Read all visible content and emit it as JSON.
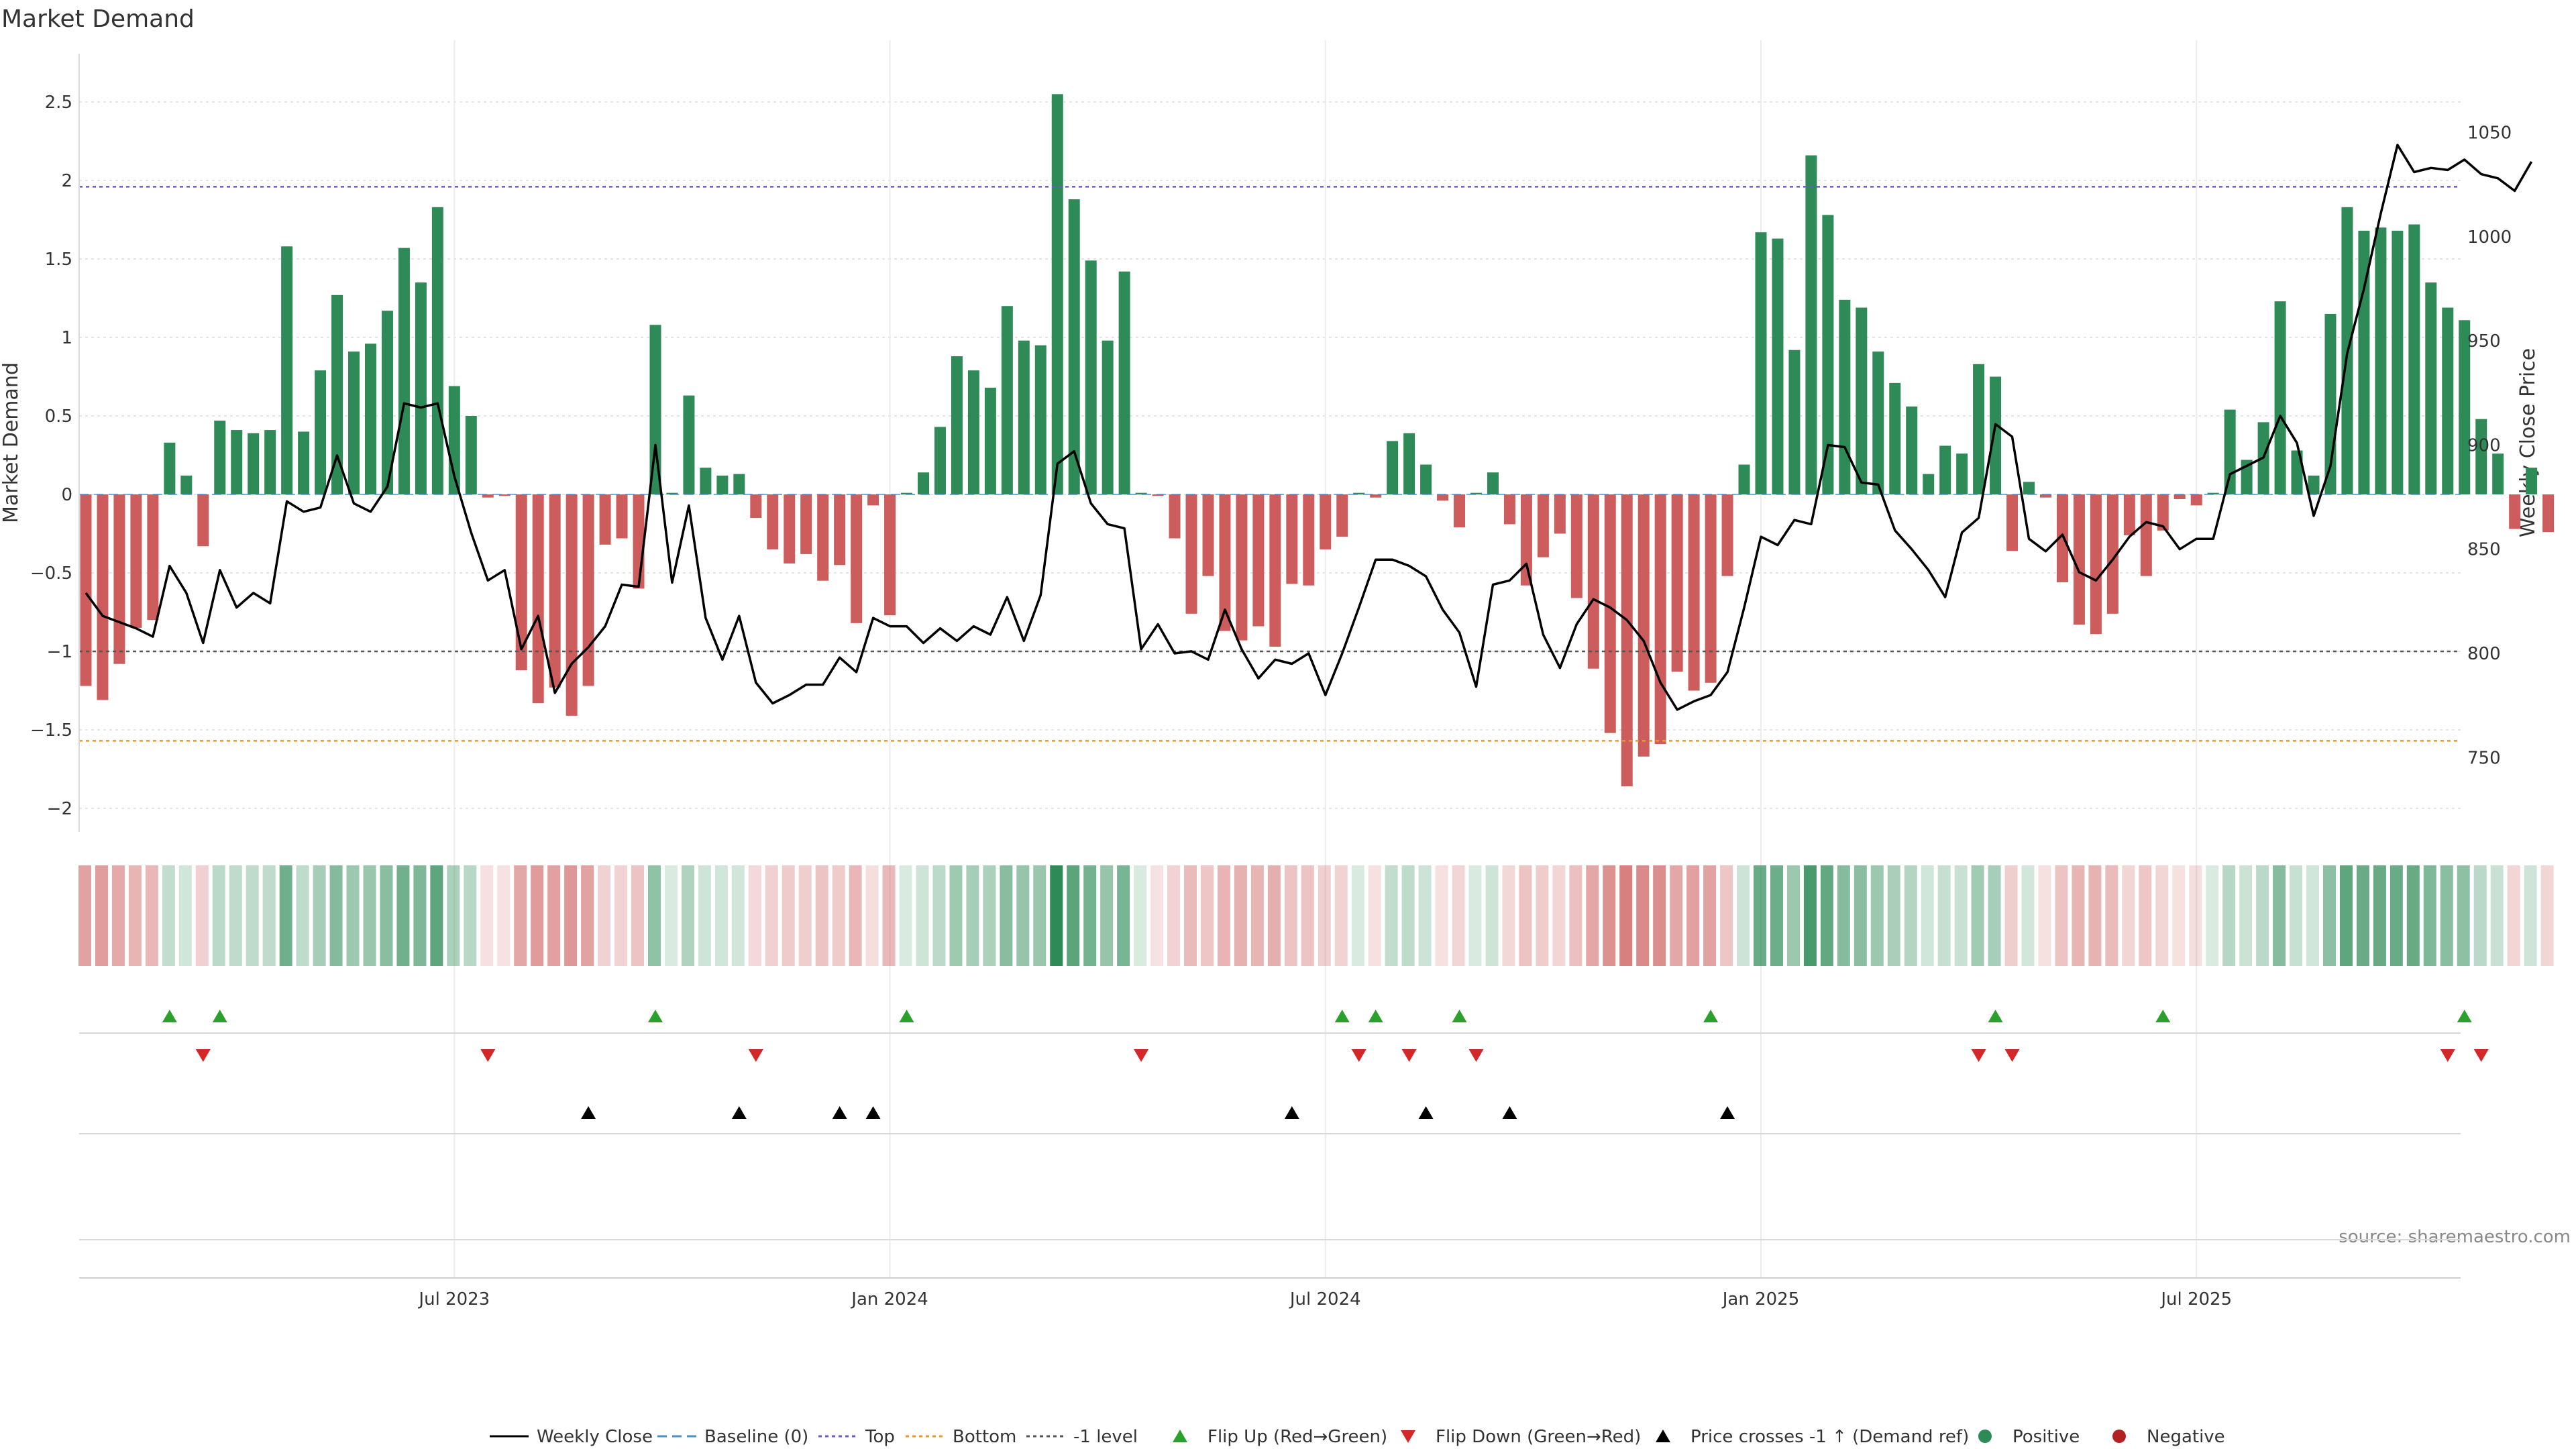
{
  "title": "Market Demand",
  "source": "source: sharemaestro.com",
  "colors": {
    "positive": "#2e8b57",
    "negative": "#cd5c5c",
    "price": "#000000",
    "top": "#6a5acd",
    "bottom": "#e69a2e",
    "minus1": "#555555",
    "flip_up": "#2ca02c",
    "flip_down": "#d62728",
    "cross": "#000000"
  },
  "chart_data": {
    "type": "bar+line",
    "title": "Market Demand",
    "ylabel": "Market Demand",
    "y2label": "Weekly Close Price",
    "ylim": [
      -2.25,
      2.8
    ],
    "y2lim": [
      715,
      1083
    ],
    "yticks": [
      -2,
      -1.5,
      -1,
      -0.5,
      0,
      0.5,
      1,
      1.5,
      2,
      2.5
    ],
    "ytick_labels": [
      "−2",
      "−1.5",
      "−1",
      "−0.5",
      "0",
      "0.5",
      "1",
      "1.5",
      "2",
      "2.5"
    ],
    "y2ticks": [
      750,
      800,
      850,
      900,
      950,
      1000,
      1050
    ],
    "y2tick_labels": [
      "750",
      "800",
      "850",
      "900",
      "950",
      "1000",
      "1050"
    ],
    "xticks": [
      {
        "label": "Jul 2023",
        "week": 22
      },
      {
        "label": "Jan 2024",
        "week": 48
      },
      {
        "label": "Jul 2024",
        "week": 74
      },
      {
        "label": "Jan 2025",
        "week": 100
      },
      {
        "label": "Jul 2025",
        "week": 126
      }
    ],
    "reference_lines": {
      "top": 1.96,
      "bottom": -1.57,
      "minus1": -1.0,
      "baseline": 0
    },
    "demand": [
      -1.22,
      -1.31,
      -1.08,
      -0.85,
      -0.8,
      0.33,
      0.12,
      -0.33,
      0.47,
      0.41,
      0.39,
      0.41,
      1.58,
      0.4,
      0.79,
      1.27,
      0.91,
      0.96,
      1.17,
      1.57,
      1.35,
      1.83,
      0.69,
      0.5,
      -0.02,
      -0.01,
      -1.12,
      -1.33,
      -1.23,
      -1.41,
      -1.22,
      -0.32,
      -0.28,
      -0.6,
      1.08,
      0.01,
      0.63,
      0.17,
      0.12,
      0.13,
      -0.15,
      -0.35,
      -0.44,
      -0.38,
      -0.55,
      -0.45,
      -0.82,
      -0.07,
      -0.77,
      0.01,
      0.14,
      0.43,
      0.88,
      0.79,
      0.68,
      1.2,
      0.98,
      0.95,
      2.55,
      1.88,
      1.49,
      0.98,
      1.42,
      0.01,
      -0.01,
      -0.28,
      -0.76,
      -0.52,
      -0.87,
      -0.93,
      -0.84,
      -0.97,
      -0.57,
      -0.58,
      -0.35,
      -0.27,
      0.01,
      -0.02,
      0.34,
      0.39,
      0.19,
      -0.04,
      -0.21,
      0.01,
      0.14,
      -0.19,
      -0.58,
      -0.4,
      -0.25,
      -0.66,
      -1.11,
      -1.52,
      -1.86,
      -1.67,
      -1.59,
      -1.13,
      -1.25,
      -1.2,
      -0.52,
      0.19,
      1.67,
      1.63,
      0.92,
      2.16,
      1.78,
      1.24,
      1.19,
      0.91,
      0.71,
      0.56,
      0.13,
      0.31,
      0.26,
      0.83,
      0.75,
      -0.36,
      0.08,
      -0.02,
      -0.56,
      -0.83,
      -0.89,
      -0.76,
      -0.26,
      -0.52,
      -0.23,
      -0.03,
      -0.07,
      0.01,
      0.54,
      0.22,
      0.46,
      1.23,
      0.28,
      0.12,
      1.15,
      1.83,
      1.68,
      1.7,
      1.68,
      1.72,
      1.35,
      1.19,
      1.11,
      0.48,
      0.26,
      -0.22,
      0.17,
      -0.24
    ],
    "price": [
      829,
      818,
      815,
      812,
      808,
      842,
      829,
      805,
      840,
      822,
      829,
      824,
      873,
      868,
      870,
      895,
      872,
      868,
      880,
      920,
      918,
      920,
      885,
      858,
      835,
      840,
      802,
      818,
      781,
      795,
      803,
      813,
      833,
      832,
      900,
      834,
      871,
      817,
      797,
      818,
      786,
      776,
      780,
      785,
      785,
      798,
      791,
      817,
      813,
      813,
      805,
      812,
      806,
      813,
      809,
      827,
      806,
      828,
      891,
      897,
      872,
      862,
      860,
      802,
      814,
      800,
      801,
      797,
      821,
      802,
      788,
      797,
      795,
      800,
      780,
      800,
      822,
      845,
      845,
      842,
      837,
      821,
      810,
      784,
      833,
      835,
      843,
      809,
      793,
      814,
      826,
      822,
      816,
      806,
      786,
      773,
      777,
      780,
      791,
      822,
      856,
      852,
      864,
      862,
      900,
      899,
      882,
      881,
      859,
      850,
      840,
      827,
      858,
      865,
      910,
      904,
      855,
      849,
      857,
      839,
      835,
      845,
      856,
      863,
      861,
      850,
      855,
      855,
      886,
      890,
      894,
      914,
      901,
      866,
      890,
      944,
      975,
      1011,
      1044,
      1031,
      1033,
      1032,
      1037,
      1030,
      1028,
      1022,
      1036
    ],
    "flip_up": [
      5,
      8,
      34,
      49,
      75,
      77,
      82,
      97,
      114,
      124,
      142
    ],
    "flip_down": [
      7,
      24,
      40,
      63,
      76,
      79,
      83,
      113,
      115,
      141,
      143
    ],
    "price_cross_up": [
      30,
      39,
      45,
      47,
      72,
      80,
      85,
      98
    ]
  },
  "legend": [
    {
      "label": "Weekly Close",
      "type": "line-solid",
      "color": "#000000"
    },
    {
      "label": "Baseline (0)",
      "type": "line-dash",
      "color": "#4a8fc7"
    },
    {
      "label": "Top",
      "type": "line-dot",
      "color": "#6a5acd"
    },
    {
      "label": "Bottom",
      "type": "line-dot",
      "color": "#e69a2e"
    },
    {
      "label": "-1 level",
      "type": "line-dot",
      "color": "#555555"
    },
    {
      "label": "Flip Up (Red→Green)",
      "type": "tri-up",
      "color": "#2ca02c"
    },
    {
      "label": "Flip Down (Green→Red)",
      "type": "tri-down",
      "color": "#d62728"
    },
    {
      "label": "Price crosses -1 ↑ (Demand ref)",
      "type": "tri-up",
      "color": "#000000"
    },
    {
      "label": "Positive",
      "type": "dot",
      "color": "#2e8b57"
    },
    {
      "label": "Negative",
      "type": "dot",
      "color": "#b22222"
    }
  ]
}
